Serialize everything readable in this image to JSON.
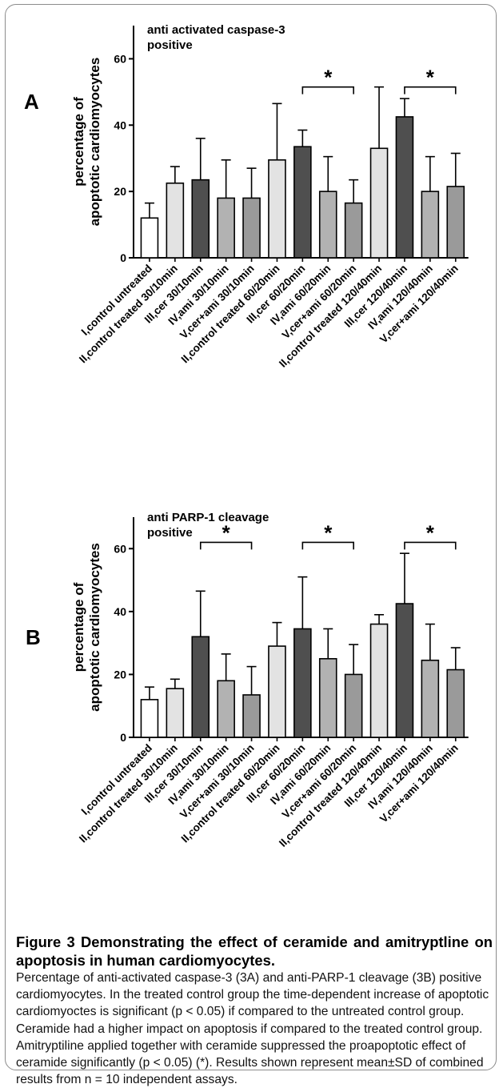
{
  "figure": {
    "caption_title": "Figure 3 Demonstrating the effect of ceramide and amitryptline on apoptosis in human cardiomyocytes",
    "caption_title_end": ".",
    "caption_text": "Percentage of anti-activated caspase-3 (3A) and anti-PARP-1 cleavage (3B) positive cardiomyocytes. In the treated control group the time-dependent increase of apoptotic cardiomyoctes is significant (p < 0.05) if compared to the untreated control group. Ceramide had a higher impact on apoptosis if compared to the treated control group. Amitryptiline applied together with ceramide suppressed the proapoptotic effect of ceramide significantly (p < 0.05) (*). Results shown represent mean±SD of combined results from n = 10 independent assays."
  },
  "colors": {
    "white": "#ffffff",
    "light": "#e3e3e3",
    "dark": "#4f4f4f",
    "mid": "#b2b2b2",
    "mid2": "#9a9a9a"
  },
  "chart_data": [
    {
      "type": "bar",
      "panel_label": "A",
      "title_line1": "anti activated caspase-3",
      "title_line2": "positive",
      "ylabel_line1": "percentage of",
      "ylabel_line2": "apoptotic cardiomyocytes",
      "ylim": [
        0,
        70
      ],
      "yticks": [
        0,
        20,
        40,
        60
      ],
      "ytick_labels": [
        "0",
        "20",
        "40",
        "60"
      ],
      "categories": [
        "I,control untreated",
        "II,control treated 30/10min",
        "III,cer 30/10min",
        "IV,ami 30/10min",
        "V,cer+ami 30/10min",
        "II,control treated 60/20min",
        "III,cer 60/20min",
        "IV,ami 60/20min",
        "V,cer+ami 60/20min",
        "II,control treated 120/40min",
        "III,cer 120/40min",
        "IV,ami 120/40min",
        "V,cer+ami 120/40min"
      ],
      "values": [
        12,
        22.5,
        23.5,
        18,
        18,
        29.5,
        33.5,
        20,
        16.5,
        33,
        42.5,
        20,
        21.5
      ],
      "sd": [
        4.5,
        5,
        12.5,
        11.5,
        9,
        17,
        5,
        10.5,
        7,
        18.5,
        5.5,
        10.5,
        10
      ],
      "bar_fill": [
        "white",
        "light",
        "dark",
        "mid",
        "mid2",
        "light",
        "dark",
        "mid",
        "mid2",
        "light",
        "dark",
        "mid",
        "mid2"
      ],
      "significance": [
        {
          "from": 6,
          "to": 8,
          "y": 51.5,
          "label": "*"
        },
        {
          "from": 10,
          "to": 12,
          "y": 51.5,
          "label": "*"
        }
      ]
    },
    {
      "type": "bar",
      "panel_label": "B",
      "title_line1": "anti PARP-1 cleavage",
      "title_line2": "positive",
      "ylabel_line1": "percentage of",
      "ylabel_line2": "apoptotic cardiomyocytes",
      "ylim": [
        0,
        70
      ],
      "yticks": [
        0,
        20,
        40,
        60
      ],
      "ytick_labels": [
        "0",
        "20",
        "40",
        "60"
      ],
      "categories": [
        "I,control untreated",
        "II,control treated 30/10min",
        "III,cer 30/10min",
        "IV,ami 30/10min",
        "V,cer+ami 30/10min",
        "II,control treated 60/20min",
        "III,cer 60/20min",
        "IV,ami 60/20min",
        "V,cer+ami 60/20min",
        "II,control treated 120/40min",
        "III,cer 120/40min",
        "IV,ami 120/40min",
        "V,cer+ami 120/40min"
      ],
      "values": [
        12,
        15.5,
        32,
        18,
        13.5,
        29,
        34.5,
        25,
        20,
        36,
        42.5,
        24.5,
        21.5
      ],
      "sd": [
        4,
        3,
        14.5,
        8.5,
        9,
        7.5,
        16.5,
        9.5,
        9.5,
        3,
        16,
        11.5,
        7
      ],
      "bar_fill": [
        "white",
        "light",
        "dark",
        "mid",
        "mid2",
        "light",
        "dark",
        "mid",
        "mid2",
        "light",
        "dark",
        "mid",
        "mid2"
      ],
      "significance": [
        {
          "from": 2,
          "to": 4,
          "y": 62,
          "label": "*"
        },
        {
          "from": 6,
          "to": 8,
          "y": 62,
          "label": "*"
        },
        {
          "from": 10,
          "to": 12,
          "y": 62,
          "label": "*"
        }
      ]
    }
  ]
}
